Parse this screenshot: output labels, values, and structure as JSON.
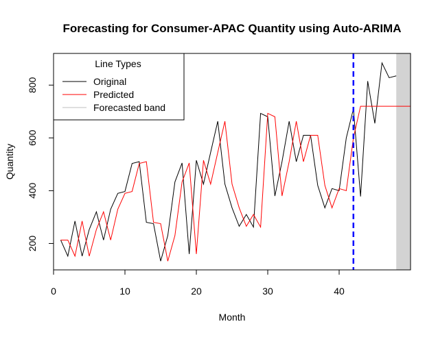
{
  "chart_data": {
    "type": "line",
    "title": "Forecasting for Consumer-APAC Quantity using Auto-ARIMA",
    "xlabel": "Month",
    "ylabel": "Quantity",
    "xlim": [
      0,
      50
    ],
    "ylim": [
      100,
      920
    ],
    "x_ticks": [
      0,
      10,
      20,
      30,
      40
    ],
    "y_ticks": [
      200,
      400,
      600,
      800
    ],
    "legend": {
      "title": "Line Types",
      "position": "top-left",
      "entries": [
        {
          "label": "Original",
          "color": "#000000"
        },
        {
          "label": "Predicted",
          "color": "#ff0000"
        },
        {
          "label": "Forecasted band",
          "color": "#bfbfbf"
        }
      ]
    },
    "series": [
      {
        "name": "Original",
        "color": "#000000",
        "x": [
          1,
          2,
          3,
          4,
          5,
          6,
          7,
          8,
          9,
          10,
          11,
          12,
          13,
          14,
          15,
          16,
          17,
          18,
          19,
          20,
          21,
          22,
          23,
          24,
          25,
          26,
          27,
          28,
          29,
          30,
          31,
          32,
          33,
          34,
          35,
          36,
          37,
          38,
          39,
          40,
          41,
          42,
          43,
          44,
          45,
          46,
          47,
          48
        ],
        "values": [
          213,
          152,
          285,
          152,
          253,
          320,
          213,
          330,
          390,
          397,
          503,
          510,
          280,
          275,
          133,
          230,
          433,
          505,
          160,
          515,
          425,
          545,
          663,
          425,
          335,
          265,
          310,
          262,
          693,
          680,
          380,
          510,
          663,
          510,
          610,
          610,
          420,
          335,
          408,
          400,
          600,
          710,
          378,
          815,
          655,
          884,
          828,
          835
        ]
      },
      {
        "name": "Predicted",
        "color": "#ff0000",
        "x": [
          1,
          2,
          3,
          4,
          5,
          6,
          7,
          8,
          9,
          10,
          11,
          12,
          13,
          14,
          15,
          16,
          17,
          18,
          19,
          20,
          21,
          22,
          23,
          24,
          25,
          26,
          27,
          28,
          29,
          30,
          31,
          32,
          33,
          34,
          35,
          36,
          37,
          38,
          39,
          40,
          41,
          42,
          43,
          44,
          45,
          46,
          47,
          48,
          49,
          50
        ],
        "values": [
          213,
          213,
          152,
          285,
          152,
          253,
          320,
          213,
          330,
          390,
          397,
          503,
          510,
          280,
          275,
          133,
          230,
          433,
          505,
          160,
          515,
          425,
          545,
          663,
          425,
          335,
          265,
          310,
          262,
          693,
          680,
          380,
          510,
          663,
          510,
          610,
          610,
          420,
          335,
          408,
          400,
          600,
          720,
          720,
          720,
          720,
          720,
          720,
          720,
          720
        ]
      }
    ],
    "forecast_band": {
      "x_start": 48.0,
      "x_end": 50.0,
      "color": "#d3d3d3"
    },
    "vertical_marker": {
      "x": 42,
      "color": "#0000ff",
      "style": "dashed"
    }
  }
}
